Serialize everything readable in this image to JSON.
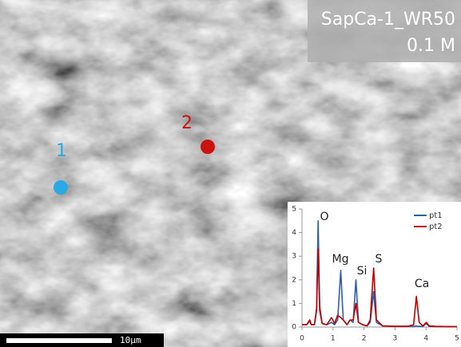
{
  "image": {
    "title": [
      "SapCa-1_WR50",
      "0.1 M"
    ],
    "points": [
      {
        "label": "1",
        "color": "#2aa9e6"
      },
      {
        "label": "2",
        "color": "#cc1111"
      }
    ],
    "scale_bar": "10μm"
  },
  "chart_data": {
    "type": "line",
    "x": [
      0,
      0.15,
      0.25,
      0.3,
      0.4,
      0.47,
      0.52,
      0.57,
      0.65,
      0.8,
      0.95,
      1.05,
      1.15,
      1.25,
      1.33,
      1.45,
      1.55,
      1.65,
      1.74,
      1.82,
      1.95,
      2.1,
      2.2,
      2.31,
      2.4,
      2.6,
      3.0,
      3.4,
      3.6,
      3.69,
      3.78,
      3.9,
      4.01,
      4.1,
      4.3,
      4.7,
      5.0
    ],
    "series": [
      {
        "name": "pt1",
        "color": "#2f5fa6",
        "values": [
          0.1,
          0.1,
          0.25,
          0.1,
          0.1,
          0.8,
          4.5,
          0.9,
          0.15,
          0.1,
          0.2,
          0.1,
          0.3,
          2.4,
          0.3,
          0.1,
          0.3,
          0.2,
          2.0,
          0.2,
          0.1,
          0.05,
          0.2,
          1.5,
          0.2,
          0.05,
          0.03,
          0.03,
          0.03,
          0.05,
          0.03,
          0.03,
          0.15,
          0.03,
          0.02,
          0.02,
          0.02
        ]
      },
      {
        "name": "pt2",
        "color": "#c00000",
        "values": [
          0.1,
          0.1,
          0.3,
          0.1,
          0.1,
          0.7,
          3.3,
          0.7,
          0.15,
          0.1,
          0.4,
          0.15,
          0.5,
          0.4,
          0.3,
          0.1,
          0.3,
          0.3,
          1.0,
          0.2,
          0.1,
          0.05,
          0.3,
          2.5,
          0.3,
          0.05,
          0.03,
          0.03,
          0.1,
          1.3,
          0.2,
          0.05,
          0.2,
          0.05,
          0.03,
          0.02,
          0.02
        ]
      }
    ],
    "annotations": [
      "O",
      "Mg",
      "Si",
      "S",
      "Ca"
    ],
    "xlim": [
      0,
      5
    ],
    "xticks": [
      0,
      1,
      2,
      3,
      4,
      5
    ],
    "ylim": [
      0,
      5
    ],
    "yticks": [
      0,
      1,
      2,
      3,
      4,
      5
    ],
    "legend": "top-right"
  }
}
